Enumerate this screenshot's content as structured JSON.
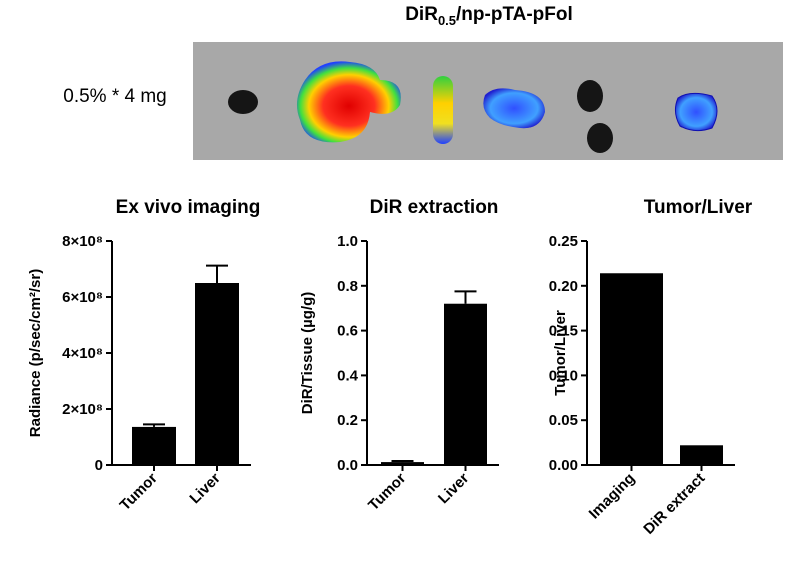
{
  "image_panel": {
    "title": [
      "DiR",
      "0.5",
      "/np-pTA-pFol"
    ],
    "label": "0.5% * 4 mg"
  },
  "chart_data": [
    {
      "type": "bar",
      "title": "Ex vivo imaging",
      "y_label": "Radiance (p/sec/cm²/sr)",
      "categories": [
        "Tumor",
        "Liver"
      ],
      "values": [
        136000000,
        650000000
      ],
      "errors": [
        9000000,
        62000000
      ],
      "color": "#000000",
      "ylim": [
        0,
        800000000
      ],
      "yticks": [
        0,
        {
          "value": 200000000,
          "label": "2×10⁸"
        },
        {
          "value": 400000000,
          "label": "4×10⁸"
        },
        {
          "value": 600000000,
          "label": "6×10⁸"
        },
        {
          "value": 800000000,
          "label": "8×10⁸"
        }
      ]
    },
    {
      "type": "bar",
      "title": "DiR extraction",
      "y_label": "DiR/Tissue (µg/g)",
      "categories": [
        "Tumor",
        "Liver"
      ],
      "values": [
        0.013,
        0.72
      ],
      "errors": [
        0.005,
        0.055
      ],
      "color": "#000000",
      "ylim": [
        0,
        1
      ],
      "yticks": [
        {
          "value": 0,
          "label": "0.0"
        },
        0.2,
        0.4,
        0.6,
        0.8,
        {
          "value": 1,
          "label": "1.0"
        }
      ]
    },
    {
      "type": "bar",
      "title": "Tumor/Liver",
      "y_label": "Tumor/Liver",
      "categories": [
        "Imaging",
        "DiR extract"
      ],
      "values": [
        0.214,
        0.022
      ],
      "color": "#000000",
      "ylim": [
        0,
        0.25
      ],
      "yticks": [
        {
          "value": 0,
          "label": "0.00"
        },
        {
          "value": 0.05,
          "label": "0.05"
        },
        {
          "value": 0.1,
          "label": "0.10"
        },
        {
          "value": 0.15,
          "label": "0.15"
        },
        {
          "value": 0.2,
          "label": "0.20"
        },
        {
          "value": 0.25,
          "label": "0.25"
        }
      ]
    }
  ]
}
